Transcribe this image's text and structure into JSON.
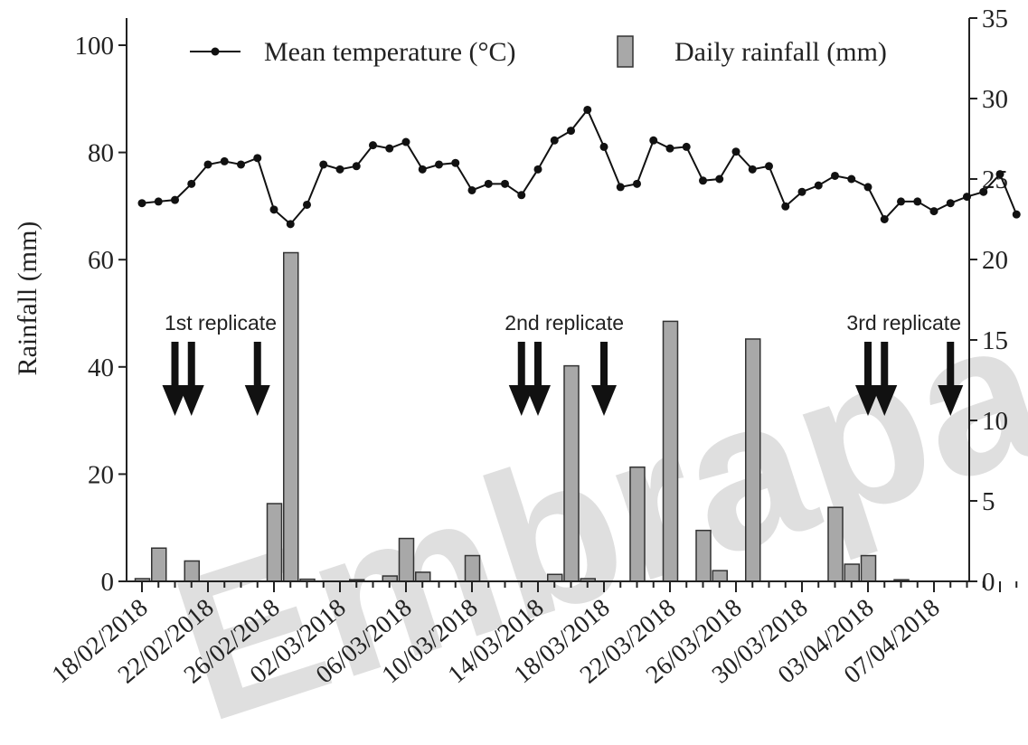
{
  "chart_data": {
    "type": "bar",
    "title": "",
    "ylabel": "Rainfall (mm)",
    "y2label": "",
    "ylim": [
      0,
      100
    ],
    "y2lim": [
      0,
      35
    ],
    "yticks": [
      "0",
      "20",
      "40",
      "60",
      "80",
      "100"
    ],
    "y2ticks": [
      "0",
      "5",
      "10",
      "15",
      "20",
      "25",
      "30",
      "35"
    ],
    "x_tick_labels": [
      "18/02/2018",
      "22/02/2018",
      "26/02/2018",
      "02/03/2018",
      "06/03/2018",
      "10/03/2018",
      "14/03/2018",
      "18/03/2018",
      "22/03/2018",
      "26/03/2018",
      "30/03/2018",
      "03/04/2018",
      "07/04/2018"
    ],
    "legend": {
      "position": "top",
      "line_label": "Mean temperature (°C)",
      "bar_label": "Daily rainfall (mm)"
    },
    "series": [
      {
        "name": "Daily rainfall (mm)",
        "type": "bar",
        "axis": "left",
        "x": [
          "18/02/2018",
          "19/02/2018",
          "21/02/2018",
          "26/02/2018",
          "27/02/2018",
          "28/02/2018",
          "03/03/2018",
          "05/03/2018",
          "06/03/2018",
          "07/03/2018",
          "10/03/2018",
          "15/03/2018",
          "16/03/2018",
          "17/03/2018",
          "20/03/2018",
          "22/03/2018",
          "24/03/2018",
          "25/03/2018",
          "27/03/2018",
          "01/04/2018",
          "02/04/2018",
          "03/04/2018",
          "05/04/2018"
        ],
        "values": [
          0.5,
          6.2,
          3.8,
          14.5,
          61.3,
          0.4,
          0.3,
          1.0,
          8.0,
          1.7,
          4.8,
          1.3,
          40.2,
          0.5,
          21.3,
          48.5,
          9.5,
          2.0,
          45.2,
          13.8,
          3.2,
          4.8,
          0.3
        ]
      },
      {
        "name": "Mean temperature (°C)",
        "type": "line",
        "axis": "right",
        "x_start": "18/02/2018",
        "values": [
          23.5,
          23.6,
          23.7,
          24.7,
          25.9,
          26.1,
          25.9,
          26.3,
          23.1,
          22.2,
          23.4,
          25.9,
          25.6,
          25.8,
          27.1,
          26.9,
          27.3,
          25.6,
          25.9,
          26.0,
          24.3,
          24.7,
          24.7,
          24.0,
          25.6,
          27.4,
          28.0,
          29.3,
          27.0,
          24.5,
          24.7,
          27.4,
          26.9,
          27.0,
          24.9,
          25.0,
          26.7,
          25.6,
          25.8,
          23.3,
          24.2,
          24.6,
          25.2,
          25.0,
          24.5,
          22.5,
          23.6,
          23.6,
          23.0,
          23.5,
          23.9,
          24.2,
          25.3,
          22.8
        ]
      }
    ],
    "annotations": [
      {
        "text": "1st replicate",
        "arrows": [
          "20/02/2018",
          "21/02/2018",
          "25/02/2018"
        ]
      },
      {
        "text": "2nd replicate",
        "arrows": [
          "13/03/2018",
          "14/03/2018",
          "18/03/2018"
        ]
      },
      {
        "text": "3rd replicate",
        "arrows": [
          "03/04/2018",
          "04/04/2018",
          "08/04/2018"
        ]
      }
    ]
  }
}
